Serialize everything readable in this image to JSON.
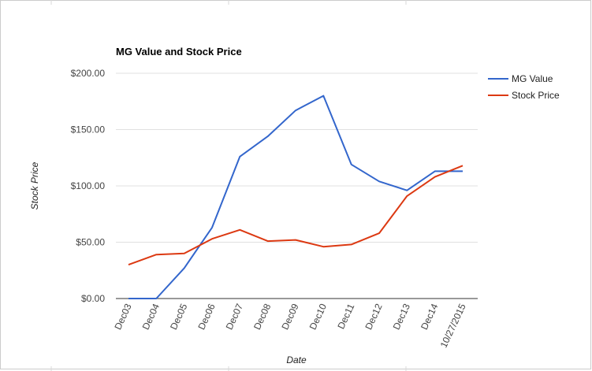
{
  "chart_data": {
    "type": "line",
    "title": "MG Value and Stock Price",
    "xlabel": "Date",
    "ylabel": "Stock Price",
    "categories": [
      "Dec03",
      "Dec04",
      "Dec05",
      "Dec06",
      "Dec07",
      "Dec08",
      "Dec09",
      "Dec10",
      "Dec11",
      "Dec12",
      "Dec13",
      "Dec14",
      "10/27/2015"
    ],
    "y_ticks": [
      "$0.00",
      "$50.00",
      "$100.00",
      "$150.00",
      "$200.00"
    ],
    "y_tick_values": [
      0,
      50,
      100,
      150,
      200
    ],
    "ylim": [
      0,
      200
    ],
    "grid": true,
    "legend_position": "right",
    "series": [
      {
        "name": "MG Value",
        "color": "#3366cc",
        "values": [
          0,
          0,
          27,
          63,
          126,
          144,
          167,
          180,
          119,
          104,
          96,
          113,
          113
        ]
      },
      {
        "name": "Stock Price",
        "color": "#dc3912",
        "values": [
          30,
          39,
          40,
          53,
          61,
          51,
          52,
          46,
          48,
          58,
          91,
          108,
          118
        ]
      }
    ]
  }
}
